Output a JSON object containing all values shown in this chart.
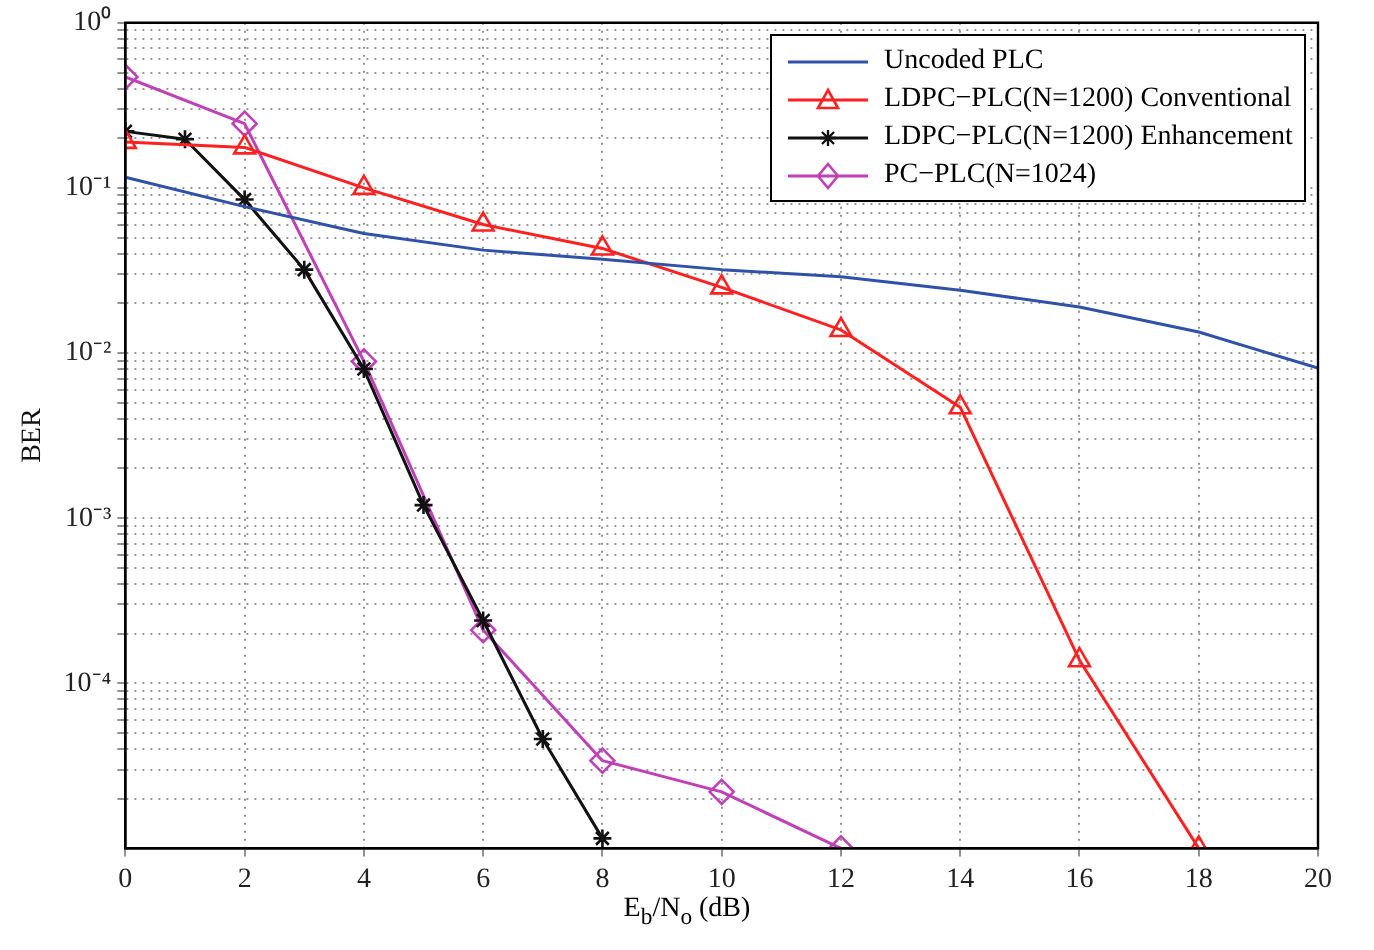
{
  "chart_data": {
    "type": "line",
    "xlabel": "E$_{b}$/N$_{o}$ (dB)",
    "ylabel": "BER",
    "log": "y",
    "grid": true,
    "legend": "top right",
    "line_style": "solid",
    "xlim": [
      0,
      20
    ],
    "xticks": [
      0,
      2,
      4,
      6,
      8,
      10,
      12,
      14,
      16,
      18,
      20
    ],
    "ylim": [
      1e-05,
      1
    ],
    "yticks": [
      {
        "value": 2e-05,
        "label": null
      },
      {
        "value": 3e-05,
        "label": null
      },
      {
        "value": 4e-05,
        "label": null
      },
      {
        "value": 5e-05,
        "label": null
      },
      {
        "value": 6e-05,
        "label": null
      },
      {
        "value": 7e-05,
        "label": null
      },
      {
        "value": 8e-05,
        "label": null
      },
      {
        "value": 9e-05,
        "label": null
      },
      {
        "value": 0.0001,
        "label": "10⁻⁴"
      },
      {
        "value": 0.0002,
        "label": null
      },
      {
        "value": 0.0003,
        "label": null
      },
      {
        "value": 0.0004,
        "label": null
      },
      {
        "value": 0.0005,
        "label": null
      },
      {
        "value": 0.0006,
        "label": null
      },
      {
        "value": 0.0007,
        "label": null
      },
      {
        "value": 0.0008,
        "label": null
      },
      {
        "value": 0.0009,
        "label": null
      },
      {
        "value": 0.001,
        "label": "10⁻³"
      },
      {
        "value": 0.002,
        "label": null
      },
      {
        "value": 0.003,
        "label": null
      },
      {
        "value": 0.004,
        "label": null
      },
      {
        "value": 0.005,
        "label": null
      },
      {
        "value": 0.006,
        "label": null
      },
      {
        "value": 0.007,
        "label": null
      },
      {
        "value": 0.008,
        "label": null
      },
      {
        "value": 0.009,
        "label": null
      },
      {
        "value": 0.01,
        "label": "10⁻²"
      },
      {
        "value": 0.02,
        "label": null
      },
      {
        "value": 0.03,
        "label": null
      },
      {
        "value": 0.04,
        "label": null
      },
      {
        "value": 0.05,
        "label": null
      },
      {
        "value": 0.06,
        "label": null
      },
      {
        "value": 0.07,
        "label": null
      },
      {
        "value": 0.08,
        "label": null
      },
      {
        "value": 0.09,
        "label": null
      },
      {
        "value": 0.1,
        "label": "10⁻¹"
      },
      {
        "value": 0.2,
        "label": null
      },
      {
        "value": 0.3,
        "label": null
      },
      {
        "value": 0.4,
        "label": null
      },
      {
        "value": 0.5,
        "label": null
      },
      {
        "value": 0.6,
        "label": null
      },
      {
        "value": 0.7,
        "label": null
      },
      {
        "value": 0.8,
        "label": null
      },
      {
        "value": 0.9,
        "label": null
      },
      {
        "value": 1,
        "label": "10⁰"
      }
    ],
    "series": [
      {
        "name": "Uncoded PLC",
        "color": "#2f52a8",
        "marker": "none",
        "x": [
          0,
          2,
          4,
          6,
          8,
          10,
          12,
          14,
          16,
          18,
          20
        ],
        "values": [
          0.116,
          0.077,
          0.053,
          0.042,
          0.037,
          0.032,
          0.029,
          0.024,
          0.019,
          0.0134,
          0.0081
        ]
      },
      {
        "name": "LDPC−PLC(N=1200) Conventional",
        "color": "#ff2020",
        "marker": "triangle",
        "x": [
          0,
          2,
          4,
          6,
          8,
          10,
          12,
          14,
          16,
          18
        ],
        "values": [
          0.19,
          0.176,
          0.1,
          0.06,
          0.043,
          0.025,
          0.0138,
          0.0047,
          0.000138,
          1e-05
        ]
      },
      {
        "name": "LDPC−PLC(N=1200) Enhancement",
        "color": "#111111",
        "marker": "cross",
        "x": [
          0,
          1,
          2,
          3,
          4,
          5,
          6,
          7,
          8
        ],
        "values": [
          0.22,
          0.197,
          0.085,
          0.032,
          0.008,
          0.0012,
          0.00024,
          4.6e-05,
          1.15e-05
        ]
      },
      {
        "name": "PC−PLC(N=1024)",
        "color": "#c040b8",
        "marker": "diamond",
        "x": [
          0,
          2,
          4,
          6,
          8,
          10,
          12
        ],
        "values": [
          0.47,
          0.245,
          0.0089,
          0.00021,
          3.4e-05,
          2.2e-05,
          1e-05
        ]
      }
    ]
  }
}
